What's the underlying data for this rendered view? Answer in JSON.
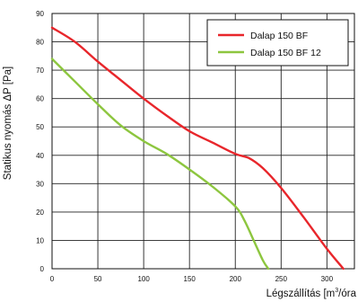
{
  "chart_data": {
    "type": "line",
    "title": "",
    "xlabel": "Légszállítás [m³/óra]",
    "xlabel_main": "Légszállítás [m",
    "xlabel_sup": "3",
    "xlabel_tail": "/óra",
    "ylabel": "Statikus nyomás ΔP [Pa]",
    "xlim": [
      0,
      330
    ],
    "ylim": [
      0,
      90
    ],
    "xticks": [
      0,
      50,
      100,
      150,
      200,
      250,
      300
    ],
    "yticks": [
      0,
      10,
      20,
      30,
      40,
      50,
      60,
      70,
      80,
      90
    ],
    "grid": true,
    "legend_position": "top-right",
    "series": [
      {
        "name": "Dalap 150 BF",
        "color": "#e8262b",
        "x": [
          0,
          25,
          50,
          75,
          100,
          125,
          150,
          175,
          200,
          215,
          230,
          250,
          275,
          300,
          318
        ],
        "y": [
          85,
          80,
          73,
          66.5,
          60,
          54,
          48.5,
          44.5,
          40.5,
          39,
          35.5,
          28.5,
          18,
          7,
          0
        ]
      },
      {
        "name": "Dalap 150 BF 12",
        "color": "#8dc63f",
        "x": [
          0,
          25,
          50,
          75,
          100,
          125,
          150,
          175,
          200,
          210,
          220,
          230,
          236
        ],
        "y": [
          74,
          66,
          58,
          50.5,
          45,
          40.5,
          35,
          29,
          22,
          17,
          10,
          3,
          0
        ]
      }
    ]
  }
}
